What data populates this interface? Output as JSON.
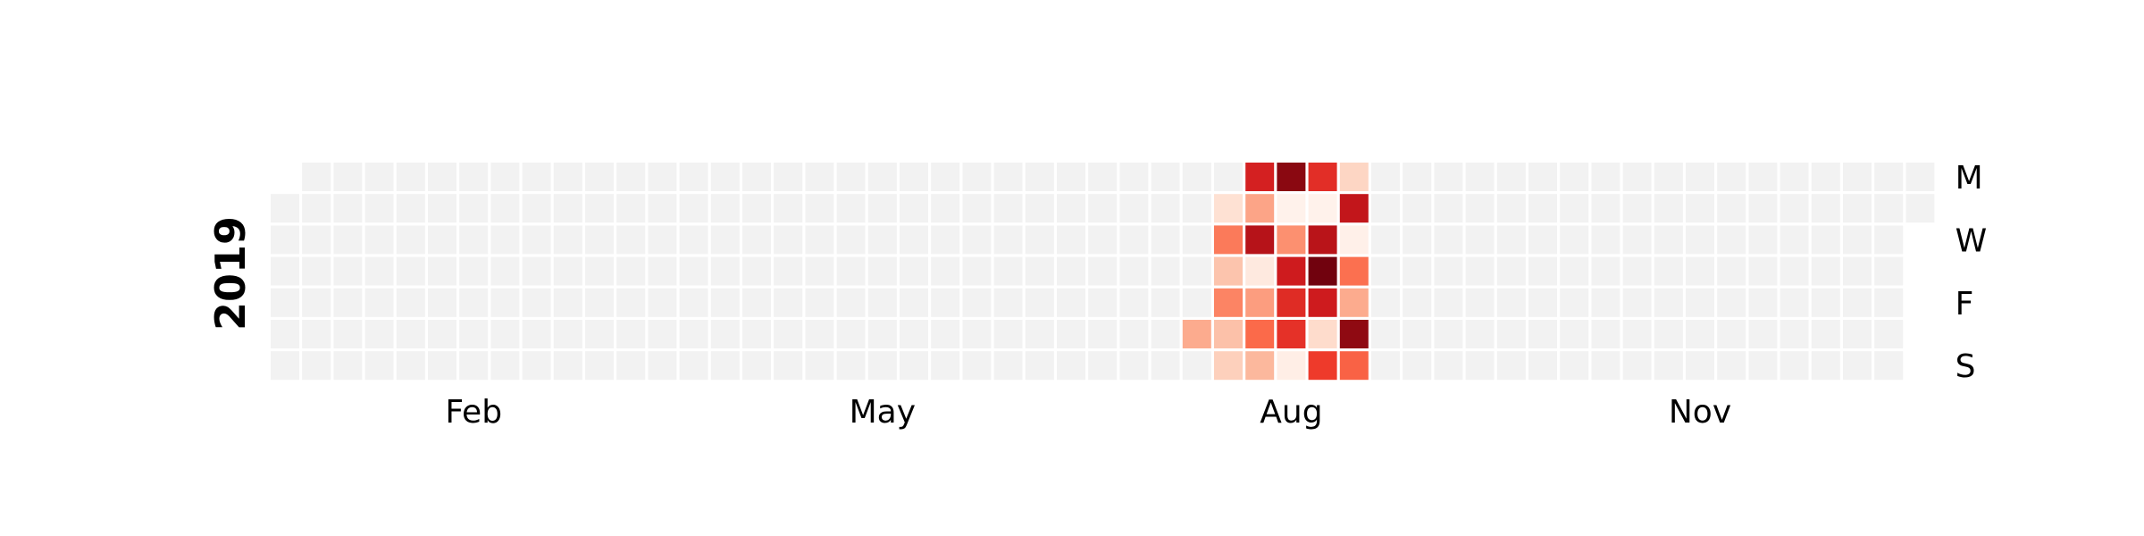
{
  "chart_data": {
    "type": "heatmap",
    "title": "",
    "year": "2019",
    "month_labels": [
      "Feb",
      "May",
      "Aug",
      "Nov"
    ],
    "day_labels": [
      "M",
      "W",
      "F",
      "S"
    ],
    "first_date": "2019-01-01",
    "last_date": "2019-12-31",
    "empty_color": "#f2f2f2",
    "colormap": "Reds",
    "colormap_stops": [
      "#fff5f0",
      "#fee0d2",
      "#fcbba1",
      "#fc9272",
      "#fb6a4a",
      "#ef3b2c",
      "#cb181d",
      "#a50f15",
      "#67000d"
    ],
    "value_range": [
      0,
      1
    ],
    "values": [
      {
        "date": "2019-07-27",
        "value": 0.3
      },
      {
        "date": "2019-07-30",
        "value": 0.12
      },
      {
        "date": "2019-07-31",
        "value": 0.45
      },
      {
        "date": "2019-08-01",
        "value": 0.22
      },
      {
        "date": "2019-08-02",
        "value": 0.42
      },
      {
        "date": "2019-08-03",
        "value": 0.23
      },
      {
        "date": "2019-08-04",
        "value": 0.18
      },
      {
        "date": "2019-08-05",
        "value": 0.72
      },
      {
        "date": "2019-08-06",
        "value": 0.32
      },
      {
        "date": "2019-08-07",
        "value": 0.82
      },
      {
        "date": "2019-08-08",
        "value": 0.07
      },
      {
        "date": "2019-08-09",
        "value": 0.34
      },
      {
        "date": "2019-08-10",
        "value": 0.5
      },
      {
        "date": "2019-08-11",
        "value": 0.26
      },
      {
        "date": "2019-08-12",
        "value": 0.93
      },
      {
        "date": "2019-08-13",
        "value": 0.02
      },
      {
        "date": "2019-08-14",
        "value": 0.38
      },
      {
        "date": "2019-08-15",
        "value": 0.74
      },
      {
        "date": "2019-08-16",
        "value": 0.68
      },
      {
        "date": "2019-08-17",
        "value": 0.66
      },
      {
        "date": "2019-08-18",
        "value": 0.04
      },
      {
        "date": "2019-08-19",
        "value": 0.67
      },
      {
        "date": "2019-08-20",
        "value": 0.02
      },
      {
        "date": "2019-08-21",
        "value": 0.81
      },
      {
        "date": "2019-08-22",
        "value": 0.98
      },
      {
        "date": "2019-08-23",
        "value": 0.74
      },
      {
        "date": "2019-08-24",
        "value": 0.14
      },
      {
        "date": "2019-08-25",
        "value": 0.63
      },
      {
        "date": "2019-08-26",
        "value": 0.16
      },
      {
        "date": "2019-08-27",
        "value": 0.78
      },
      {
        "date": "2019-08-28",
        "value": 0.03
      },
      {
        "date": "2019-08-29",
        "value": 0.48
      },
      {
        "date": "2019-08-30",
        "value": 0.3
      },
      {
        "date": "2019-08-31",
        "value": 0.92
      },
      {
        "date": "2019-09-01",
        "value": 0.52
      }
    ]
  }
}
